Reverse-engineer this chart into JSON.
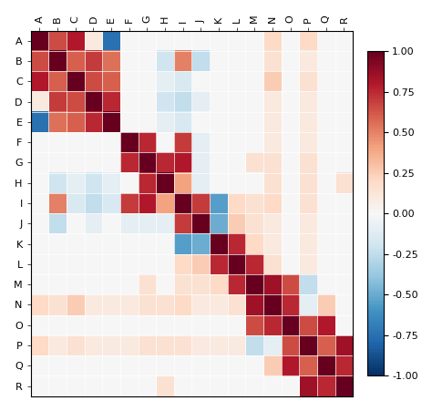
{
  "labels": [
    "A",
    "B",
    "C",
    "D",
    "E",
    "F",
    "G",
    "H",
    "I",
    "J",
    "K",
    "L",
    "M",
    "N",
    "O",
    "P",
    "Q",
    "R"
  ],
  "matrix": [
    [
      1.0,
      0.65,
      0.8,
      0.1,
      -0.75,
      0.0,
      0.0,
      0.0,
      0.0,
      0.0,
      0.0,
      0.0,
      0.0,
      0.2,
      0.0,
      0.2,
      0.0,
      0.0
    ],
    [
      0.65,
      1.0,
      0.6,
      0.7,
      0.55,
      0.0,
      0.0,
      -0.2,
      0.5,
      -0.25,
      0.0,
      0.0,
      0.0,
      0.15,
      0.0,
      0.1,
      0.0,
      0.0
    ],
    [
      0.8,
      0.6,
      1.0,
      0.65,
      0.6,
      0.0,
      0.0,
      -0.1,
      -0.15,
      0.0,
      0.0,
      0.0,
      0.0,
      0.25,
      0.0,
      0.15,
      0.0,
      0.0
    ],
    [
      0.1,
      0.7,
      0.65,
      1.0,
      0.75,
      0.0,
      0.0,
      -0.2,
      -0.25,
      -0.1,
      0.0,
      0.0,
      0.0,
      0.1,
      0.0,
      0.1,
      0.0,
      0.0
    ],
    [
      -0.75,
      0.55,
      0.6,
      0.75,
      1.0,
      0.0,
      0.0,
      -0.1,
      -0.15,
      0.0,
      0.0,
      0.0,
      0.0,
      0.1,
      0.0,
      0.1,
      0.0,
      0.0
    ],
    [
      0.0,
      0.0,
      0.0,
      0.0,
      0.0,
      1.0,
      0.75,
      0.0,
      0.7,
      -0.1,
      0.0,
      0.0,
      0.0,
      0.1,
      0.0,
      0.1,
      0.0,
      0.0
    ],
    [
      0.0,
      0.0,
      0.0,
      0.0,
      0.0,
      0.75,
      1.0,
      0.75,
      0.8,
      -0.1,
      0.0,
      0.0,
      0.15,
      0.15,
      0.0,
      0.15,
      0.0,
      0.0
    ],
    [
      0.0,
      -0.2,
      -0.1,
      -0.2,
      -0.1,
      0.0,
      0.75,
      1.0,
      0.4,
      -0.1,
      0.0,
      0.0,
      0.0,
      0.15,
      0.0,
      0.15,
      0.0,
      0.15
    ],
    [
      0.0,
      0.5,
      -0.15,
      -0.25,
      -0.15,
      0.7,
      0.8,
      0.4,
      1.0,
      0.7,
      -0.55,
      0.2,
      0.15,
      0.2,
      0.0,
      0.15,
      0.0,
      0.0
    ],
    [
      0.0,
      -0.25,
      0.0,
      -0.1,
      0.0,
      -0.1,
      -0.1,
      -0.1,
      0.7,
      1.0,
      -0.5,
      0.25,
      0.15,
      0.1,
      0.0,
      0.1,
      0.0,
      0.0
    ],
    [
      0.0,
      0.0,
      0.0,
      0.0,
      0.0,
      0.0,
      0.0,
      0.0,
      -0.55,
      -0.5,
      1.0,
      0.75,
      0.2,
      0.1,
      0.0,
      0.1,
      0.0,
      0.0
    ],
    [
      0.0,
      0.0,
      0.0,
      0.0,
      0.0,
      0.0,
      0.0,
      0.0,
      0.2,
      0.25,
      0.75,
      1.0,
      0.75,
      0.15,
      0.0,
      0.1,
      0.0,
      0.0
    ],
    [
      0.0,
      0.0,
      0.0,
      0.0,
      0.0,
      0.0,
      0.15,
      0.0,
      0.15,
      0.15,
      0.2,
      0.75,
      1.0,
      0.85,
      0.65,
      -0.25,
      0.0,
      0.0
    ],
    [
      0.2,
      0.15,
      0.25,
      0.1,
      0.1,
      0.1,
      0.15,
      0.15,
      0.2,
      0.1,
      0.1,
      0.15,
      0.85,
      1.0,
      0.75,
      -0.1,
      0.25,
      0.0
    ],
    [
      0.0,
      0.0,
      0.0,
      0.0,
      0.0,
      0.0,
      0.0,
      0.0,
      0.0,
      0.0,
      0.0,
      0.0,
      0.65,
      0.75,
      1.0,
      0.65,
      0.8,
      0.0
    ],
    [
      0.2,
      0.1,
      0.15,
      0.1,
      0.1,
      0.1,
      0.15,
      0.15,
      0.15,
      0.1,
      0.1,
      0.1,
      -0.25,
      -0.1,
      0.65,
      1.0,
      0.6,
      0.85
    ],
    [
      0.0,
      0.0,
      0.0,
      0.0,
      0.0,
      0.0,
      0.0,
      0.0,
      0.0,
      0.0,
      0.0,
      0.0,
      0.0,
      0.25,
      0.8,
      0.6,
      1.0,
      0.75
    ],
    [
      0.0,
      0.0,
      0.0,
      0.0,
      0.0,
      0.0,
      0.0,
      0.15,
      0.0,
      0.0,
      0.0,
      0.0,
      0.0,
      0.0,
      0.0,
      0.85,
      0.75,
      1.0
    ]
  ],
  "cmap": "RdBu_r",
  "vmin": -1.0,
  "vmax": 1.0,
  "colorbar_ticks": [
    1.0,
    0.75,
    0.5,
    0.25,
    0.0,
    -0.25,
    -0.5,
    -0.75,
    -1.0
  ],
  "figsize": [
    4.74,
    4.51
  ],
  "dpi": 100
}
